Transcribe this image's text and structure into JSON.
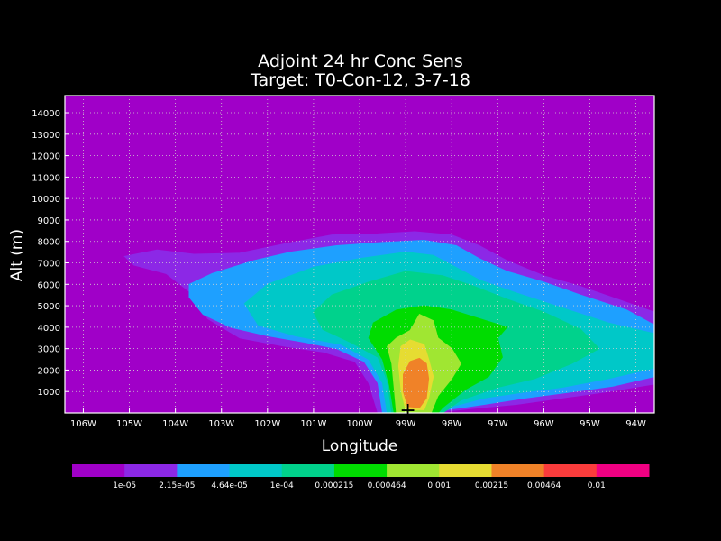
{
  "chart_data": {
    "type": "contour",
    "title": "Adjoint 24 hr Conc Sens",
    "subtitle": "Target: T0-Con-12, 3-7-18",
    "xlabel": "Longitude",
    "ylabel": "Alt (m)",
    "xlim": [
      106.4,
      93.6
    ],
    "ylim": [
      0,
      14800
    ],
    "x_ticks": [
      {
        "value": 106,
        "label": "106W"
      },
      {
        "value": 105,
        "label": "105W"
      },
      {
        "value": 104,
        "label": "104W"
      },
      {
        "value": 103,
        "label": "103W"
      },
      {
        "value": 102,
        "label": "102W"
      },
      {
        "value": 101,
        "label": "101W"
      },
      {
        "value": 100,
        "label": "100W"
      },
      {
        "value": 99,
        "label": "99W"
      },
      {
        "value": 98,
        "label": "98W"
      },
      {
        "value": 97,
        "label": "97W"
      },
      {
        "value": 96,
        "label": "96W"
      },
      {
        "value": 95,
        "label": "95W"
      },
      {
        "value": 94,
        "label": "94W"
      }
    ],
    "y_ticks": [
      1000,
      2000,
      3000,
      4000,
      5000,
      6000,
      7000,
      8000,
      9000,
      10000,
      11000,
      12000,
      13000,
      14000
    ],
    "grid": true,
    "background_color": "#a000c8",
    "contour_levels": [
      "1e-05",
      "2.15e-05",
      "4.64e-05",
      "1e-04",
      "0.000215",
      "0.000464",
      "0.001",
      "0.00215",
      "0.00464",
      "0.01"
    ],
    "colorbar_colors": [
      "#a000c8",
      "#8c28e6",
      "#1ea0ff",
      "#00c8c8",
      "#00d28c",
      "#00dc00",
      "#a0e632",
      "#e6dc32",
      "#f08228",
      "#fa3c3c",
      "#f00082"
    ],
    "contours": [
      {
        "level": "1e-05",
        "color": "#8c28e6",
        "points": [
          [
            105.1,
            7300
          ],
          [
            104.4,
            7600
          ],
          [
            103.6,
            7400
          ],
          [
            102.6,
            7450
          ],
          [
            101.6,
            7900
          ],
          [
            100.6,
            8300
          ],
          [
            99.6,
            8350
          ],
          [
            98.8,
            8450
          ],
          [
            98.0,
            8300
          ],
          [
            97.4,
            7800
          ],
          [
            96.8,
            7100
          ],
          [
            96.0,
            6400
          ],
          [
            95.2,
            5900
          ],
          [
            94.4,
            5300
          ],
          [
            93.6,
            4700
          ],
          [
            93.6,
            1350
          ],
          [
            94.6,
            1000
          ],
          [
            95.6,
            700
          ],
          [
            96.6,
            400
          ],
          [
            97.6,
            200
          ],
          [
            98.4,
            0
          ],
          [
            99.6,
            0
          ],
          [
            99.8,
            1400
          ],
          [
            100.1,
            2400
          ],
          [
            100.8,
            2850
          ],
          [
            101.6,
            3100
          ],
          [
            102.6,
            3500
          ],
          [
            103.3,
            4400
          ],
          [
            103.6,
            5500
          ],
          [
            104.2,
            6500
          ],
          [
            104.9,
            6900
          ]
        ]
      },
      {
        "level": "2.15e-05",
        "color": "#1ea0ff",
        "points": [
          [
            103.7,
            6000
          ],
          [
            103.2,
            6500
          ],
          [
            102.3,
            7100
          ],
          [
            101.5,
            7500
          ],
          [
            100.5,
            7800
          ],
          [
            99.5,
            7950
          ],
          [
            98.6,
            8050
          ],
          [
            97.9,
            7800
          ],
          [
            97.4,
            7200
          ],
          [
            96.8,
            6600
          ],
          [
            96.0,
            6100
          ],
          [
            95.2,
            5500
          ],
          [
            94.2,
            4800
          ],
          [
            93.6,
            4100
          ],
          [
            93.6,
            1700
          ],
          [
            94.5,
            1250
          ],
          [
            95.5,
            950
          ],
          [
            96.4,
            700
          ],
          [
            97.3,
            400
          ],
          [
            98.1,
            150
          ],
          [
            98.4,
            0
          ],
          [
            99.5,
            0
          ],
          [
            99.6,
            1400
          ],
          [
            99.9,
            2400
          ],
          [
            100.5,
            3000
          ],
          [
            101.2,
            3300
          ],
          [
            102.0,
            3600
          ],
          [
            102.8,
            4000
          ],
          [
            103.4,
            4600
          ],
          [
            103.7,
            5400
          ]
        ]
      },
      {
        "level": "4.64e-05",
        "color": "#00c8c8",
        "points": [
          [
            102.5,
            5100
          ],
          [
            102.0,
            6000
          ],
          [
            101.0,
            6800
          ],
          [
            100.0,
            7200
          ],
          [
            99.0,
            7500
          ],
          [
            98.4,
            7350
          ],
          [
            98.0,
            6900
          ],
          [
            97.4,
            6200
          ],
          [
            96.6,
            5600
          ],
          [
            95.6,
            4900
          ],
          [
            94.6,
            4200
          ],
          [
            93.6,
            3700
          ],
          [
            93.6,
            2100
          ],
          [
            94.6,
            1600
          ],
          [
            95.6,
            1200
          ],
          [
            96.5,
            950
          ],
          [
            97.3,
            700
          ],
          [
            98.0,
            300
          ],
          [
            98.2,
            0
          ],
          [
            99.4,
            0
          ],
          [
            99.5,
            1400
          ],
          [
            99.8,
            2500
          ],
          [
            100.4,
            3200
          ],
          [
            101.4,
            3600
          ],
          [
            102.2,
            4100
          ]
        ]
      },
      {
        "level": "1e-04",
        "color": "#00d28c",
        "points": [
          [
            101.0,
            4700
          ],
          [
            100.6,
            5500
          ],
          [
            99.8,
            6100
          ],
          [
            99.0,
            6600
          ],
          [
            98.2,
            6400
          ],
          [
            97.5,
            5900
          ],
          [
            96.8,
            5300
          ],
          [
            96.0,
            4700
          ],
          [
            95.2,
            3900
          ],
          [
            94.8,
            3000
          ],
          [
            95.4,
            2300
          ],
          [
            96.2,
            1600
          ],
          [
            97.0,
            1200
          ],
          [
            97.8,
            600
          ],
          [
            98.2,
            0
          ],
          [
            99.3,
            0
          ],
          [
            99.4,
            1500
          ],
          [
            99.6,
            2600
          ],
          [
            100.2,
            3300
          ],
          [
            100.8,
            3900
          ]
        ]
      },
      {
        "level": "0.000215",
        "color": "#00dc00",
        "points": [
          [
            99.8,
            3500
          ],
          [
            99.7,
            4200
          ],
          [
            99.2,
            4800
          ],
          [
            98.6,
            5000
          ],
          [
            98.0,
            4800
          ],
          [
            97.4,
            4400
          ],
          [
            96.8,
            4000
          ],
          [
            97.0,
            3500
          ],
          [
            96.9,
            2600
          ],
          [
            97.2,
            1700
          ],
          [
            97.7,
            1100
          ],
          [
            98.2,
            250
          ],
          [
            98.3,
            0
          ],
          [
            99.25,
            0
          ],
          [
            99.35,
            1300
          ],
          [
            99.5,
            2500
          ]
        ]
      },
      {
        "level": "0.000464",
        "color": "#a0e632",
        "points": [
          [
            99.4,
            3100
          ],
          [
            99.2,
            3500
          ],
          [
            98.9,
            3850
          ],
          [
            98.7,
            4600
          ],
          [
            98.4,
            4300
          ],
          [
            98.3,
            3500
          ],
          [
            98.0,
            3000
          ],
          [
            97.8,
            2300
          ],
          [
            98.0,
            1600
          ],
          [
            98.3,
            800
          ],
          [
            98.45,
            0
          ],
          [
            99.2,
            0
          ],
          [
            99.25,
            1200
          ],
          [
            99.3,
            2300
          ]
        ]
      },
      {
        "level": "0.001",
        "color": "#e6dc32",
        "points": [
          [
            99.1,
            3100
          ],
          [
            98.9,
            3400
          ],
          [
            98.6,
            3200
          ],
          [
            98.5,
            2500
          ],
          [
            98.4,
            1700
          ],
          [
            98.5,
            700
          ],
          [
            98.6,
            150
          ],
          [
            99.0,
            150
          ],
          [
            99.1,
            1100
          ],
          [
            99.15,
            2200
          ]
        ]
      },
      {
        "level": "0.00215",
        "color": "#f08228",
        "points": [
          [
            98.9,
            2400
          ],
          [
            98.7,
            2550
          ],
          [
            98.55,
            2300
          ],
          [
            98.5,
            1600
          ],
          [
            98.55,
            700
          ],
          [
            98.7,
            250
          ],
          [
            98.95,
            300
          ],
          [
            99.05,
            1000
          ],
          [
            99.05,
            1800
          ]
        ]
      }
    ],
    "annotation": {
      "label": "+",
      "x": 98.95,
      "y": 0
    }
  }
}
